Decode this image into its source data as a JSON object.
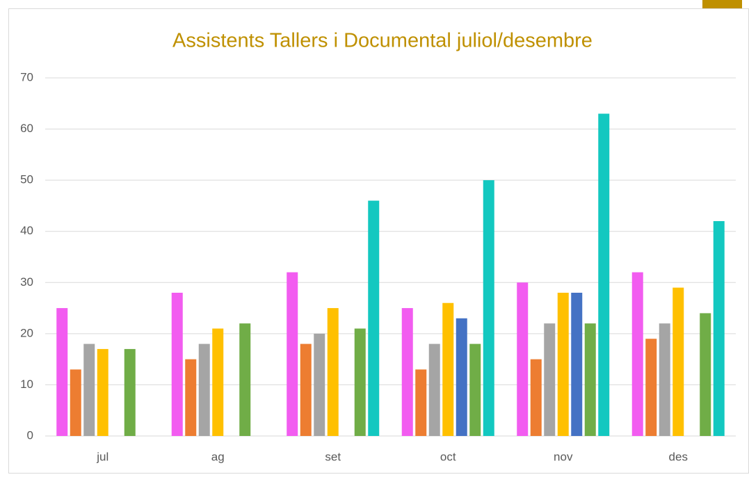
{
  "chart_data": {
    "type": "bar",
    "title": "Assistents Tallers i Documental juliol/desembre",
    "categories": [
      "jul",
      "ag",
      "set",
      "oct",
      "nov",
      "des"
    ],
    "series": [
      {
        "color": "#f25cf0",
        "values": [
          25,
          28,
          32,
          25,
          30,
          32
        ]
      },
      {
        "color": "#ed7d31",
        "values": [
          13,
          15,
          18,
          13,
          15,
          19
        ]
      },
      {
        "color": "#a5a5a5",
        "values": [
          18,
          18,
          20,
          18,
          22,
          22
        ]
      },
      {
        "color": "#ffc000",
        "values": [
          17,
          21,
          25,
          26,
          28,
          29
        ]
      },
      {
        "color": "#4472c4",
        "values": [
          null,
          null,
          null,
          23,
          28,
          null
        ]
      },
      {
        "color": "#70ad47",
        "values": [
          17,
          22,
          21,
          18,
          22,
          24
        ]
      },
      {
        "color": "#13c8c0",
        "values": [
          null,
          null,
          46,
          50,
          63,
          42
        ]
      }
    ],
    "ylim": [
      0,
      70
    ],
    "yticks": [
      0,
      10,
      20,
      30,
      40,
      50,
      60,
      70
    ],
    "grid": true
  }
}
